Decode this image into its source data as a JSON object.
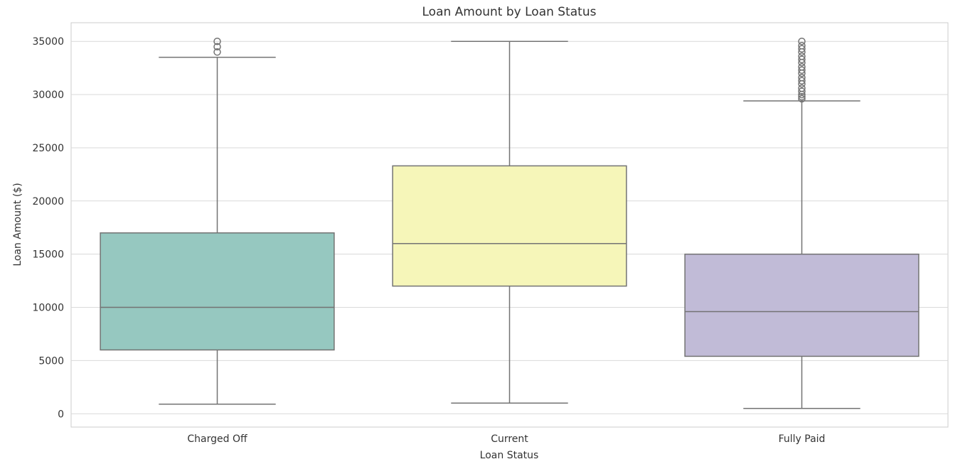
{
  "chart_data": {
    "type": "box",
    "title": "Loan Amount by Loan Status",
    "xlabel": "Loan Status",
    "ylabel": "Loan Amount ($)",
    "ylim": [
      -1250,
      36750
    ],
    "yticks": [
      0,
      5000,
      10000,
      15000,
      20000,
      25000,
      30000,
      35000
    ],
    "grid": true,
    "categories": [
      "Charged Off",
      "Current",
      "Fully Paid"
    ],
    "colors": [
      "#96c8c0",
      "#f6f6b9",
      "#c1bbd7"
    ],
    "boxes": [
      {
        "category": "Charged Off",
        "whisker_low": 900,
        "q1": 6000,
        "median": 10000,
        "q3": 17000,
        "whisker_high": 33500,
        "outliers": [
          34000,
          34500,
          35000
        ]
      },
      {
        "category": "Current",
        "whisker_low": 1000,
        "q1": 12000,
        "median": 16000,
        "q3": 23300,
        "whisker_high": 35000,
        "outliers": []
      },
      {
        "category": "Fully Paid",
        "whisker_low": 500,
        "q1": 5400,
        "median": 9600,
        "q3": 15000,
        "whisker_high": 29400,
        "outliers": [
          29600,
          29800,
          30000,
          30300,
          30600,
          31000,
          31300,
          31600,
          32000,
          32300,
          32600,
          33000,
          33300,
          33600,
          34000,
          34300,
          34600,
          35000
        ]
      }
    ]
  }
}
